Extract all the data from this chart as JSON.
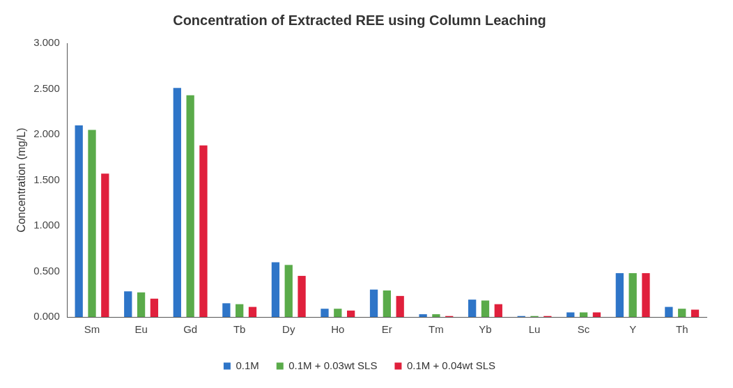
{
  "chart_data": {
    "type": "bar",
    "title": "Concentration of Extracted REE using Column Leaching",
    "ylabel": "Concentration (mg/L)",
    "categories": [
      "Sm",
      "Eu",
      "Gd",
      "Tb",
      "Dy",
      "Ho",
      "Er",
      "Tm",
      "Yb",
      "Lu",
      "Sc",
      "Y",
      "Th"
    ],
    "series": [
      {
        "name": "0.1M",
        "color": "#2e75c8",
        "values": [
          2.1,
          0.28,
          2.51,
          0.15,
          0.6,
          0.09,
          0.3,
          0.03,
          0.19,
          0.01,
          0.05,
          0.48,
          0.11
        ]
      },
      {
        "name": "0.1M + 0.03wt SLS",
        "color": "#5aab4a",
        "values": [
          2.05,
          0.27,
          2.43,
          0.14,
          0.57,
          0.09,
          0.29,
          0.03,
          0.18,
          0.01,
          0.05,
          0.48,
          0.09
        ]
      },
      {
        "name": "0.1M + 0.04wt SLS",
        "color": "#e0203c",
        "values": [
          1.57,
          0.2,
          1.88,
          0.11,
          0.45,
          0.07,
          0.23,
          0.01,
          0.14,
          0.01,
          0.05,
          0.48,
          0.08
        ]
      }
    ],
    "ylim": [
      0,
      3
    ],
    "yticks": [
      {
        "value": 0,
        "label": "0.000"
      },
      {
        "value": 0.5,
        "label": "0.500"
      },
      {
        "value": 1,
        "label": "1.000"
      },
      {
        "value": 1.5,
        "label": "1.500"
      },
      {
        "value": 2,
        "label": "2.000"
      },
      {
        "value": 2.5,
        "label": "2.500"
      },
      {
        "value": 3,
        "label": "3.000"
      }
    ],
    "grid": false,
    "legend": "bottom"
  }
}
